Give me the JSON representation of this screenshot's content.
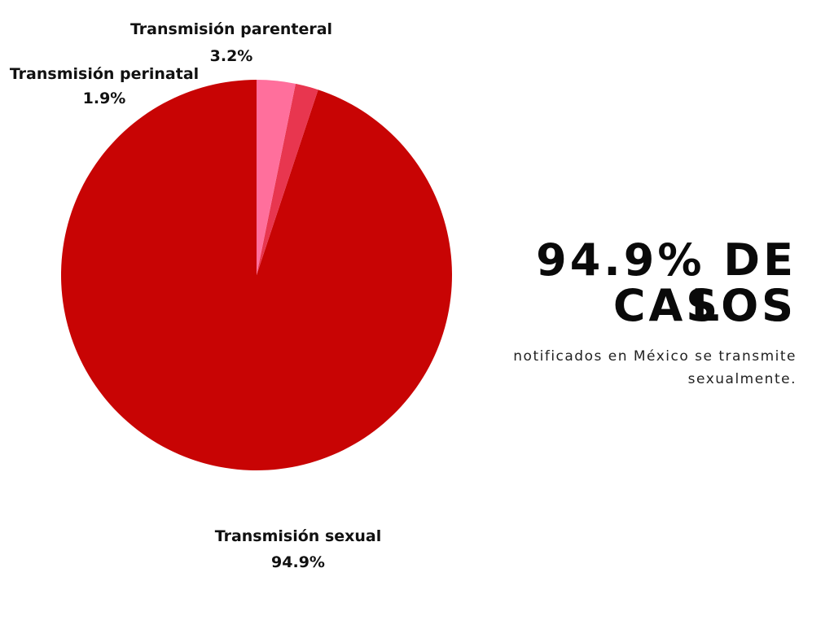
{
  "chart_data": {
    "type": "pie",
    "slices": [
      {
        "label": "Transmisión sexual",
        "value": 94.9,
        "value_label": "94.9%",
        "color": "#c80404",
        "label_position": "bottom"
      },
      {
        "label": "Transmisión perinatal",
        "value": 1.9,
        "value_label": "1.9%",
        "color": "#e8364f",
        "label_position": "top-left"
      },
      {
        "label": "Transmisión parenteral",
        "value": 3.2,
        "value_label": "3.2%",
        "color": "#ff6f9c",
        "label_position": "top"
      }
    ],
    "start_angle": "12 o'clock",
    "direction": "counter-clockwise",
    "legend": "none"
  },
  "headline": {
    "line1": "94.9% DE LOS",
    "line2": "CASOS"
  },
  "subtitle": {
    "line1": "notificados en México se transmite",
    "line2": "sexualmente."
  }
}
